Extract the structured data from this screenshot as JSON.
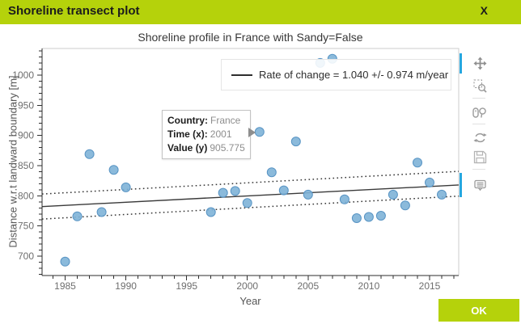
{
  "window": {
    "title": "Shoreline transect plot",
    "close_label": "X",
    "ok_label": "OK"
  },
  "tooltip": {
    "rows": [
      {
        "label": "Country:",
        "value": "France"
      },
      {
        "label": "Time (x):",
        "value": "2001"
      },
      {
        "label": "Value (y)",
        "value": "905.775"
      }
    ]
  },
  "toolbar": {
    "tools": [
      {
        "name": "pan",
        "icon": "move-icon",
        "active": true
      },
      {
        "name": "box-zoom",
        "icon": "box-zoom-icon",
        "active": false
      },
      {
        "name": "wheel-zoom",
        "icon": "wheel-zoom-icon",
        "active": false
      },
      {
        "name": "reset",
        "icon": "reset-icon",
        "active": false
      },
      {
        "name": "save",
        "icon": "save-icon",
        "active": false
      },
      {
        "name": "hover",
        "icon": "hover-icon",
        "active": true
      }
    ],
    "active_color": "#26a7e0"
  },
  "colors": {
    "titlebar": "#b5d20b",
    "ok_button": "#b5d20b"
  },
  "chart_data": {
    "type": "scatter",
    "title": "Shoreline profile in France with Sandy=False",
    "xlabel": "Year",
    "ylabel": "Distance w.r.t landward boundary [m]",
    "xlim": [
      1983.1,
      2017.4
    ],
    "ylim": [
      668,
      1044
    ],
    "x_major_ticks": [
      1985,
      1990,
      1995,
      2000,
      2005,
      2010,
      2015
    ],
    "y_major_ticks": [
      700,
      750,
      800,
      850,
      900,
      950,
      1000
    ],
    "grid": false,
    "legend_position": "top-right",
    "legend_label": "Rate of change = 1.040 +/- 0.974 m/year",
    "points": [
      {
        "x": 1985,
        "y": 691
      },
      {
        "x": 1986,
        "y": 766
      },
      {
        "x": 1987,
        "y": 869
      },
      {
        "x": 1988,
        "y": 773
      },
      {
        "x": 1989,
        "y": 843
      },
      {
        "x": 1990,
        "y": 814
      },
      {
        "x": 1997,
        "y": 773
      },
      {
        "x": 1998,
        "y": 805
      },
      {
        "x": 1999,
        "y": 808
      },
      {
        "x": 2000,
        "y": 788
      },
      {
        "x": 2001,
        "y": 905.775
      },
      {
        "x": 2002,
        "y": 839
      },
      {
        "x": 2003,
        "y": 809
      },
      {
        "x": 2004,
        "y": 890
      },
      {
        "x": 2005,
        "y": 802
      },
      {
        "x": 2006,
        "y": 1020
      },
      {
        "x": 2007,
        "y": 1027
      },
      {
        "x": 2008,
        "y": 794
      },
      {
        "x": 2009,
        "y": 763
      },
      {
        "x": 2010,
        "y": 765
      },
      {
        "x": 2011,
        "y": 767
      },
      {
        "x": 2012,
        "y": 802
      },
      {
        "x": 2013,
        "y": 784
      },
      {
        "x": 2014,
        "y": 855
      },
      {
        "x": 2015,
        "y": 822
      },
      {
        "x": 2016,
        "y": 802
      }
    ],
    "trend_line": {
      "x1": 1983.1,
      "y1": 782.2,
      "x2": 2017.4,
      "y2": 817.9
    },
    "band_upper": {
      "x1": 1983.1,
      "y1": 803.0,
      "x2": 2017.4,
      "y2": 840.5
    },
    "band_lower": {
      "x1": 1983.1,
      "y1": 761.5,
      "x2": 2017.4,
      "y2": 799.5
    },
    "colors": {
      "point_fill": "#7eb2d7",
      "point_stroke": "#5894c4",
      "trend": "#3a3a3a",
      "band": "#333333",
      "axis": "#2e2e2e",
      "outline": "#cccccc",
      "tick_label": "#6e6e6e"
    }
  }
}
